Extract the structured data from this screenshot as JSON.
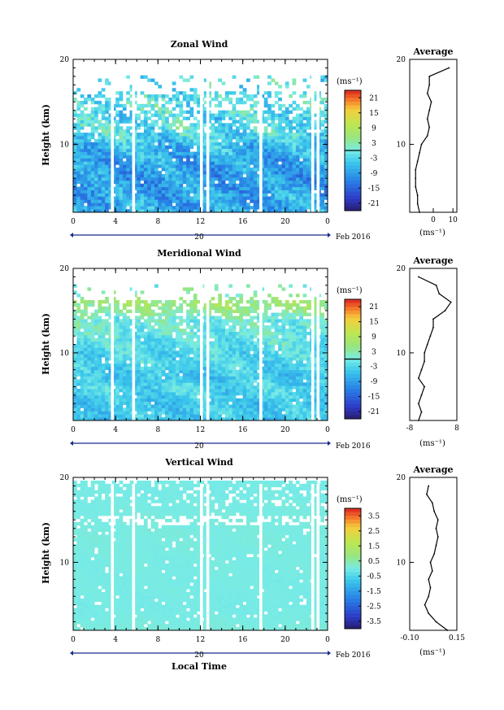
{
  "chart_data": [
    {
      "type": "heatmap",
      "title": "Zonal Wind",
      "ylabel": "Height (km)",
      "xlabel": "",
      "x_range": [
        0,
        24
      ],
      "y_range": [
        2,
        20
      ],
      "x_ticks": [
        "0",
        "4",
        "8",
        "12",
        "16",
        "20",
        "0"
      ],
      "y_ticks": [
        "10",
        "20"
      ],
      "date_marker": "20",
      "date_label": "Feb 2016",
      "colorbar": {
        "unit": "(ms⁻¹)",
        "range": [
          -24,
          24
        ],
        "tick_values": [
          21,
          15,
          9,
          3,
          -3,
          -9,
          -15,
          -21
        ],
        "tick_labels": [
          "21",
          "15",
          "9",
          "3",
          "-3",
          "-9",
          "-15",
          "-21"
        ],
        "contour_level": 0
      },
      "profile": {
        "title": "Average",
        "xlim": [
          -12,
          12
        ],
        "x_ticks": [
          "0",
          "10"
        ],
        "y_ticks": [
          "10",
          "20"
        ],
        "xlabel": "(ms⁻¹)",
        "heights": [
          2,
          3,
          4,
          5,
          6,
          7,
          8,
          9,
          10,
          11,
          12,
          13,
          14,
          15,
          16,
          17,
          18,
          19
        ],
        "values": [
          -7,
          -8,
          -8,
          -9,
          -9,
          -9,
          -8,
          -7,
          -6,
          -3,
          -2,
          -3,
          -2,
          -1,
          -3,
          -2,
          -2,
          8
        ]
      }
    },
    {
      "type": "heatmap",
      "title": "Meridional Wind",
      "ylabel": "Height (km)",
      "xlabel": "",
      "x_range": [
        0,
        24
      ],
      "y_range": [
        2,
        20
      ],
      "x_ticks": [
        "0",
        "4",
        "8",
        "12",
        "16",
        "20",
        "0"
      ],
      "y_ticks": [
        "10",
        "20"
      ],
      "date_marker": "20",
      "date_label": "Feb 2016",
      "colorbar": {
        "unit": "(ms⁻¹)",
        "range": [
          -24,
          24
        ],
        "tick_values": [
          21,
          15,
          9,
          3,
          -3,
          -9,
          -15,
          -21
        ],
        "tick_labels": [
          "21",
          "15",
          "9",
          "3",
          "-3",
          "-9",
          "-15",
          "-21"
        ],
        "contour_level": 0
      },
      "profile": {
        "title": "Average",
        "xlim": [
          -8,
          8
        ],
        "x_ticks": [
          "-8",
          "8"
        ],
        "y_ticks": [
          "10",
          "20"
        ],
        "xlabel": "(ms⁻¹)",
        "heights": [
          2,
          3,
          4,
          5,
          6,
          7,
          8,
          9,
          10,
          11,
          12,
          13,
          14,
          15,
          16,
          17,
          18,
          19
        ],
        "values": [
          -5,
          -4,
          -5,
          -4,
          -3,
          -5,
          -4,
          -3,
          -3,
          -2,
          -1,
          0,
          0,
          4,
          6,
          2,
          1,
          -5
        ]
      }
    },
    {
      "type": "heatmap",
      "title": "Vertical Wind",
      "ylabel": "Height (km)",
      "xlabel": "Local Time",
      "x_range": [
        0,
        24
      ],
      "y_range": [
        2,
        20
      ],
      "x_ticks": [
        "0",
        "4",
        "8",
        "12",
        "16",
        "20",
        "0"
      ],
      "y_ticks": [
        "10",
        "20"
      ],
      "date_marker": "20",
      "date_label": "Feb 2016",
      "colorbar": {
        "unit": "(ms⁻¹)",
        "range": [
          -4,
          4
        ],
        "tick_values": [
          3.5,
          2.5,
          1.5,
          0.5,
          -0.5,
          -1.5,
          -2.5,
          -3.5
        ],
        "tick_labels": [
          "3.5",
          "2.5",
          "1.5",
          "0.5",
          "-0.5",
          "-1.5",
          "-2.5",
          "-3.5"
        ]
      },
      "profile": {
        "title": "Average",
        "xlim": [
          -0.1,
          0.15
        ],
        "x_ticks": [
          "-0.10",
          "0.15"
        ],
        "y_ticks": [
          "10",
          "20"
        ],
        "xlabel": "(ms⁻¹)",
        "heights": [
          2,
          3,
          4,
          5,
          6,
          7,
          8,
          9,
          10,
          11,
          12,
          13,
          14,
          15,
          16,
          17,
          18,
          19
        ],
        "values": [
          0.1,
          0.04,
          0.0,
          -0.02,
          0.0,
          0.01,
          0.0,
          0.02,
          0.01,
          0.03,
          0.04,
          0.05,
          0.04,
          0.05,
          0.03,
          0.02,
          -0.01,
          0.0
        ]
      }
    }
  ]
}
